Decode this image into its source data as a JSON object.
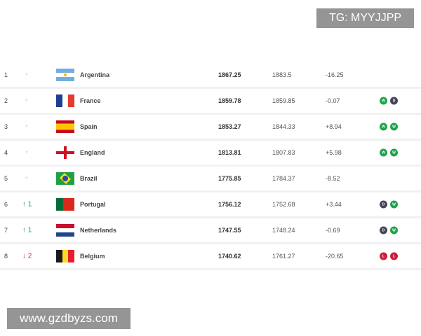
{
  "watermarks": {
    "top": "TG: MYYJJPP",
    "bottom": "www.gzdbyzs.com"
  },
  "rows": [
    {
      "rank": "1",
      "move": "none",
      "move_text": "",
      "team": "Argentina",
      "flag": "argentina",
      "points": "1867.25",
      "previous": "1883.5",
      "diff": "-16.25",
      "form": []
    },
    {
      "rank": "2",
      "move": "none",
      "move_text": "",
      "team": "France",
      "flag": "france",
      "points": "1859.78",
      "previous": "1859.85",
      "diff": "-0.07",
      "form": [
        "W",
        "D"
      ]
    },
    {
      "rank": "3",
      "move": "none",
      "move_text": "",
      "team": "Spain",
      "flag": "spain",
      "points": "1853.27",
      "previous": "1844.33",
      "diff": "+8.94",
      "form": [
        "W",
        "W"
      ]
    },
    {
      "rank": "4",
      "move": "none",
      "move_text": "",
      "team": "England",
      "flag": "england",
      "points": "1813.81",
      "previous": "1807.83",
      "diff": "+5.98",
      "form": [
        "W",
        "W"
      ]
    },
    {
      "rank": "5",
      "move": "none",
      "move_text": "",
      "team": "Brazil",
      "flag": "brazil",
      "points": "1775.85",
      "previous": "1784.37",
      "diff": "-8.52",
      "form": []
    },
    {
      "rank": "6",
      "move": "up",
      "move_text": "↑ 1",
      "team": "Portugal",
      "flag": "portugal",
      "points": "1756.12",
      "previous": "1752.68",
      "diff": "+3.44",
      "form": [
        "D",
        "W"
      ]
    },
    {
      "rank": "7",
      "move": "up",
      "move_text": "↑ 1",
      "team": "Netherlands",
      "flag": "netherlands",
      "points": "1747.55",
      "previous": "1748.24",
      "diff": "-0.69",
      "form": [
        "D",
        "W"
      ]
    },
    {
      "rank": "8",
      "move": "down",
      "move_text": "↓ 2",
      "team": "Belgium",
      "flag": "belgium",
      "points": "1740.62",
      "previous": "1761.27",
      "diff": "-20.65",
      "form": [
        "L",
        "L"
      ]
    }
  ],
  "colors": {
    "win": "#1fa24a",
    "draw": "#454556",
    "loss": "#cc1d3a",
    "up": "#2a9a5a",
    "down": "#c0392b"
  }
}
